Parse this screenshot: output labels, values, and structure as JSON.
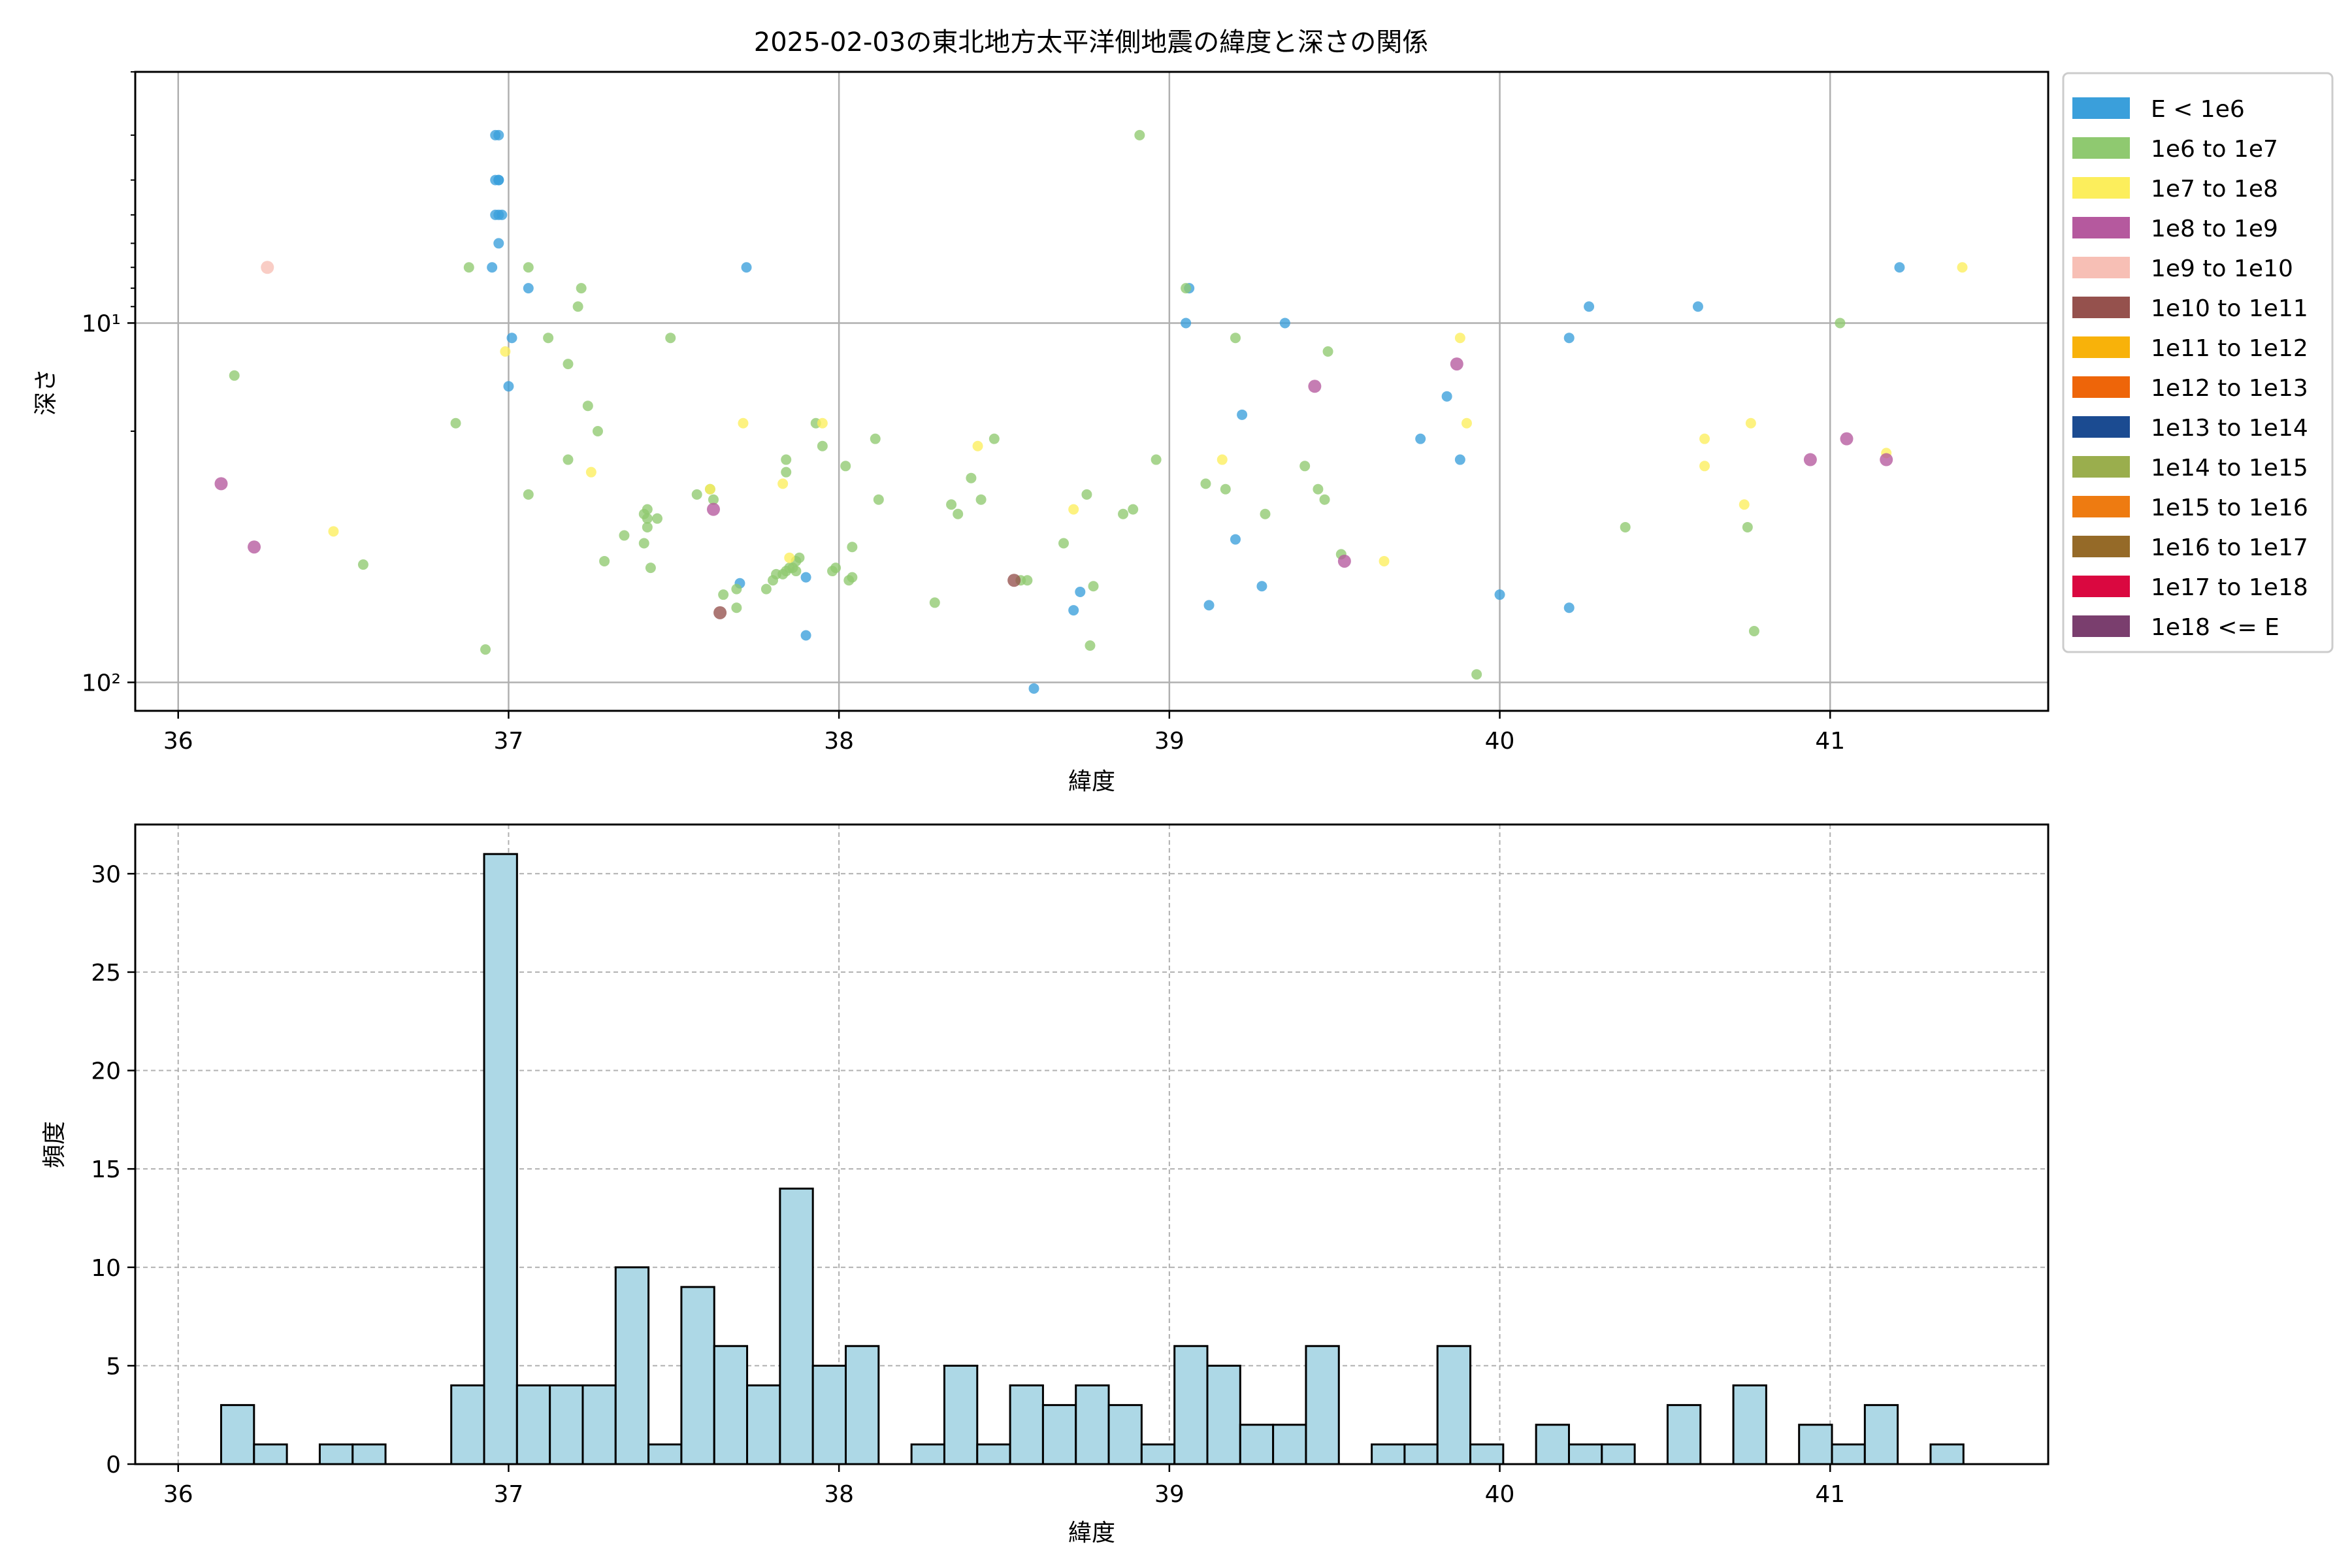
{
  "chart_data": [
    {
      "type": "scatter",
      "title": "2025-02-03の東北地方太平洋側地震の緯度と深さの関係",
      "xlabel": "緯度",
      "ylabel": "深さ",
      "xlim": [
        35.87,
        41.66
      ],
      "ylim": [
        120,
        2
      ],
      "yscale": "log",
      "y_inverted": true,
      "grid": true,
      "xticks": [
        36,
        37,
        38,
        39,
        40,
        41
      ],
      "yticks": [
        10,
        100
      ],
      "ytick_labels": [
        "10¹",
        "10²"
      ],
      "legend_position": "outside-right",
      "legend": [
        {
          "label": "E < 1e6",
          "color": "#3a9fdb"
        },
        {
          "label": "1e6 to 1e7",
          "color": "#8fc970"
        },
        {
          "label": "1e7 to 1e8",
          "color": "#fcee5c"
        },
        {
          "label": "1e8 to 1e9",
          "color": "#b5599e"
        },
        {
          "label": "1e9 to 1e10",
          "color": "#f7bfb5"
        },
        {
          "label": "1e10 to 1e11",
          "color": "#95514d"
        },
        {
          "label": "1e11 to 1e12",
          "color": "#f8b20a"
        },
        {
          "label": "1e12 to 1e13",
          "color": "#ee6509"
        },
        {
          "label": "1e13 to 1e14",
          "color": "#1b4b91"
        },
        {
          "label": "1e14 to 1e15",
          "color": "#9aae4d"
        },
        {
          "label": "1e15 to 1e16",
          "color": "#ee7b11"
        },
        {
          "label": "1e16 to 1e17",
          "color": "#956a28"
        },
        {
          "label": "1e17 to 1e18",
          "color": "#da0840"
        },
        {
          "label": "1e18 <= E",
          "color": "#7a3e6e"
        }
      ],
      "series": [
        {
          "category": 0,
          "points": [
            [
              36.96,
              3
            ],
            [
              36.97,
              3
            ],
            [
              36.96,
              4
            ],
            [
              36.97,
              4
            ],
            [
              36.97,
              4
            ],
            [
              36.96,
              5
            ],
            [
              36.97,
              5
            ],
            [
              36.98,
              5
            ],
            [
              36.97,
              6
            ],
            [
              36.95,
              7
            ],
            [
              37.01,
              11
            ],
            [
              37.0,
              15
            ],
            [
              37.06,
              8
            ],
            [
              37.72,
              7
            ],
            [
              37.7,
              53
            ],
            [
              37.9,
              51
            ],
            [
              37.9,
              74
            ],
            [
              38.59,
              104
            ],
            [
              38.71,
              63
            ],
            [
              38.73,
              56
            ],
            [
              39.05,
              10
            ],
            [
              39.06,
              8
            ],
            [
              39.12,
              61
            ],
            [
              39.2,
              40
            ],
            [
              39.22,
              18
            ],
            [
              39.28,
              54
            ],
            [
              39.35,
              10
            ],
            [
              39.76,
              21
            ],
            [
              39.84,
              16
            ],
            [
              39.88,
              24
            ],
            [
              40.0,
              57
            ],
            [
              40.21,
              11
            ],
            [
              40.21,
              62
            ],
            [
              40.27,
              9
            ],
            [
              40.6,
              9
            ],
            [
              41.21,
              7
            ]
          ]
        },
        {
          "category": 1,
          "points": [
            [
              36.17,
              14
            ],
            [
              36.56,
              47
            ],
            [
              36.84,
              19
            ],
            [
              36.88,
              7
            ],
            [
              36.93,
              81
            ],
            [
              37.06,
              7
            ],
            [
              37.06,
              30
            ],
            [
              37.12,
              11
            ],
            [
              37.18,
              13
            ],
            [
              37.18,
              24
            ],
            [
              37.21,
              9
            ],
            [
              37.22,
              8
            ],
            [
              37.24,
              17
            ],
            [
              37.27,
              20
            ],
            [
              37.29,
              46
            ],
            [
              37.35,
              39
            ],
            [
              37.41,
              34
            ],
            [
              37.41,
              41
            ],
            [
              37.42,
              33
            ],
            [
              37.42,
              35
            ],
            [
              37.42,
              37
            ],
            [
              37.43,
              48
            ],
            [
              37.45,
              35
            ],
            [
              37.49,
              11
            ],
            [
              37.57,
              30
            ],
            [
              37.61,
              29
            ],
            [
              37.62,
              31
            ],
            [
              37.65,
              57
            ],
            [
              37.69,
              55
            ],
            [
              37.69,
              62
            ],
            [
              37.78,
              55
            ],
            [
              37.8,
              52
            ],
            [
              37.81,
              50
            ],
            [
              37.83,
              50
            ],
            [
              37.84,
              24
            ],
            [
              37.84,
              26
            ],
            [
              37.84,
              49
            ],
            [
              37.85,
              48
            ],
            [
              37.86,
              48
            ],
            [
              37.87,
              46
            ],
            [
              37.87,
              49
            ],
            [
              37.88,
              45
            ],
            [
              37.93,
              19
            ],
            [
              37.95,
              22
            ],
            [
              37.98,
              49
            ],
            [
              37.99,
              48
            ],
            [
              38.02,
              25
            ],
            [
              38.03,
              52
            ],
            [
              38.04,
              51
            ],
            [
              38.04,
              42
            ],
            [
              38.11,
              21
            ],
            [
              38.12,
              31
            ],
            [
              38.29,
              60
            ],
            [
              38.34,
              32
            ],
            [
              38.36,
              34
            ],
            [
              38.4,
              27
            ],
            [
              38.43,
              31
            ],
            [
              38.47,
              21
            ],
            [
              38.55,
              52
            ],
            [
              38.57,
              52
            ],
            [
              38.68,
              41
            ],
            [
              38.75,
              30
            ],
            [
              38.76,
              79
            ],
            [
              38.77,
              54
            ],
            [
              38.86,
              34
            ],
            [
              38.89,
              33
            ],
            [
              38.91,
              3
            ],
            [
              38.96,
              24
            ],
            [
              39.05,
              8
            ],
            [
              39.11,
              28
            ],
            [
              39.17,
              29
            ],
            [
              39.2,
              11
            ],
            [
              39.29,
              34
            ],
            [
              39.41,
              25
            ],
            [
              39.45,
              29
            ],
            [
              39.47,
              31
            ],
            [
              39.48,
              12
            ],
            [
              39.52,
              44
            ],
            [
              39.93,
              95
            ],
            [
              40.38,
              37
            ],
            [
              40.75,
              37
            ],
            [
              40.77,
              72
            ],
            [
              41.03,
              10
            ]
          ]
        },
        {
          "category": 2,
          "points": [
            [
              36.47,
              38
            ],
            [
              36.99,
              12
            ],
            [
              37.25,
              26
            ],
            [
              37.61,
              29
            ],
            [
              37.71,
              19
            ],
            [
              37.83,
              28
            ],
            [
              37.85,
              45
            ],
            [
              37.95,
              19
            ],
            [
              38.42,
              22
            ],
            [
              38.71,
              33
            ],
            [
              39.16,
              24
            ],
            [
              39.65,
              46
            ],
            [
              39.88,
              11
            ],
            [
              39.9,
              19
            ],
            [
              40.62,
              21
            ],
            [
              40.62,
              25
            ],
            [
              40.74,
              32
            ],
            [
              40.76,
              19
            ],
            [
              41.17,
              23
            ],
            [
              41.4,
              7
            ]
          ]
        },
        {
          "category": 3,
          "points": [
            [
              36.13,
              28
            ],
            [
              36.23,
              42
            ],
            [
              37.62,
              33
            ],
            [
              39.44,
              15
            ],
            [
              39.53,
              46
            ],
            [
              39.87,
              13
            ],
            [
              40.94,
              24
            ],
            [
              41.05,
              21
            ],
            [
              41.17,
              24
            ]
          ]
        },
        {
          "category": 4,
          "points": [
            [
              36.27,
              7
            ]
          ]
        },
        {
          "category": 5,
          "points": [
            [
              37.64,
              64
            ],
            [
              38.53,
              52
            ]
          ]
        }
      ]
    },
    {
      "type": "bar",
      "subtype": "histogram",
      "xlabel": "緯度",
      "ylabel": "頻度",
      "xlim": [
        35.87,
        41.66
      ],
      "ylim": [
        0,
        32.5
      ],
      "grid": true,
      "grid_style": "dashed",
      "bar_color": "#add8e6",
      "edge_color": "#000000",
      "xticks": [
        36,
        37,
        38,
        39,
        40,
        41
      ],
      "yticks": [
        0,
        5,
        10,
        15,
        20,
        25,
        30
      ],
      "bin_start": 36.13,
      "bin_width": 0.0995,
      "values": [
        3,
        1,
        0,
        1,
        1,
        0,
        0,
        4,
        31,
        4,
        4,
        4,
        10,
        1,
        9,
        6,
        4,
        14,
        5,
        6,
        0,
        1,
        5,
        1,
        4,
        3,
        4,
        3,
        1,
        6,
        5,
        2,
        2,
        6,
        0,
        1,
        1,
        6,
        1,
        0,
        2,
        1,
        1,
        0,
        3,
        0,
        4,
        0,
        2,
        1,
        3,
        0,
        1
      ]
    }
  ]
}
